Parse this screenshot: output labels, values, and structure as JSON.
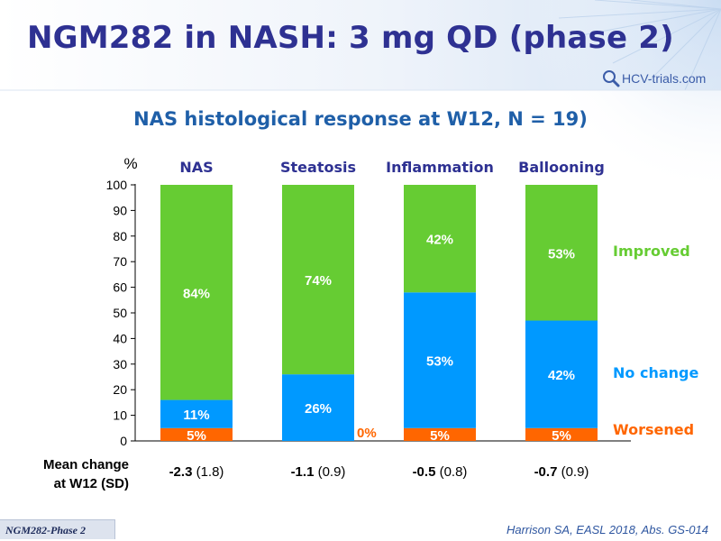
{
  "slide": {
    "title": "NGM282 in NASH: 3 mg QD (phase 2)",
    "logo_text": "HCV-trials.com",
    "subtitle": "NAS histological response at W12, N = 19)",
    "footer_tag": "NGM282-Phase 2",
    "citation": "Harrison SA, EASL 2018, Abs. GS-014"
  },
  "colors": {
    "improved": "#66cc33",
    "no_change": "#0099ff",
    "worsened": "#ff6600",
    "title": "#2e3192",
    "subtitle": "#1f5fa8",
    "category": "#2e3192"
  },
  "chart_data": {
    "type": "bar",
    "stacked": true,
    "y_unit_label": "%",
    "ylim": [
      0,
      100
    ],
    "yticks": [
      0,
      10,
      20,
      30,
      40,
      50,
      60,
      70,
      80,
      90,
      100
    ],
    "categories": [
      "NAS",
      "Steatosis",
      "Inflammation",
      "Ballooning"
    ],
    "series": [
      {
        "name": "Worsened",
        "color": "#ff6600",
        "values": [
          5,
          0,
          5,
          5
        ],
        "labels": [
          "5%",
          "0%",
          "5%",
          "5%"
        ]
      },
      {
        "name": "No change",
        "color": "#0099ff",
        "values": [
          11,
          26,
          53,
          42
        ],
        "labels": [
          "11%",
          "26%",
          "53%",
          "42%"
        ]
      },
      {
        "name": "Improved",
        "color": "#66cc33",
        "values": [
          84,
          74,
          42,
          53
        ],
        "labels": [
          "84%",
          "74%",
          "42%",
          "53%"
        ]
      }
    ],
    "mean_change": {
      "label_line1": "Mean change",
      "label_line2": "at W12 (SD)",
      "values": [
        {
          "mean": "-2.3",
          "sd": "(1.8)"
        },
        {
          "mean": "-1.1",
          "sd": "(0.9)"
        },
        {
          "mean": "-0.5",
          "sd": "(0.8)"
        },
        {
          "mean": "-0.7",
          "sd": "(0.9)"
        }
      ]
    }
  }
}
